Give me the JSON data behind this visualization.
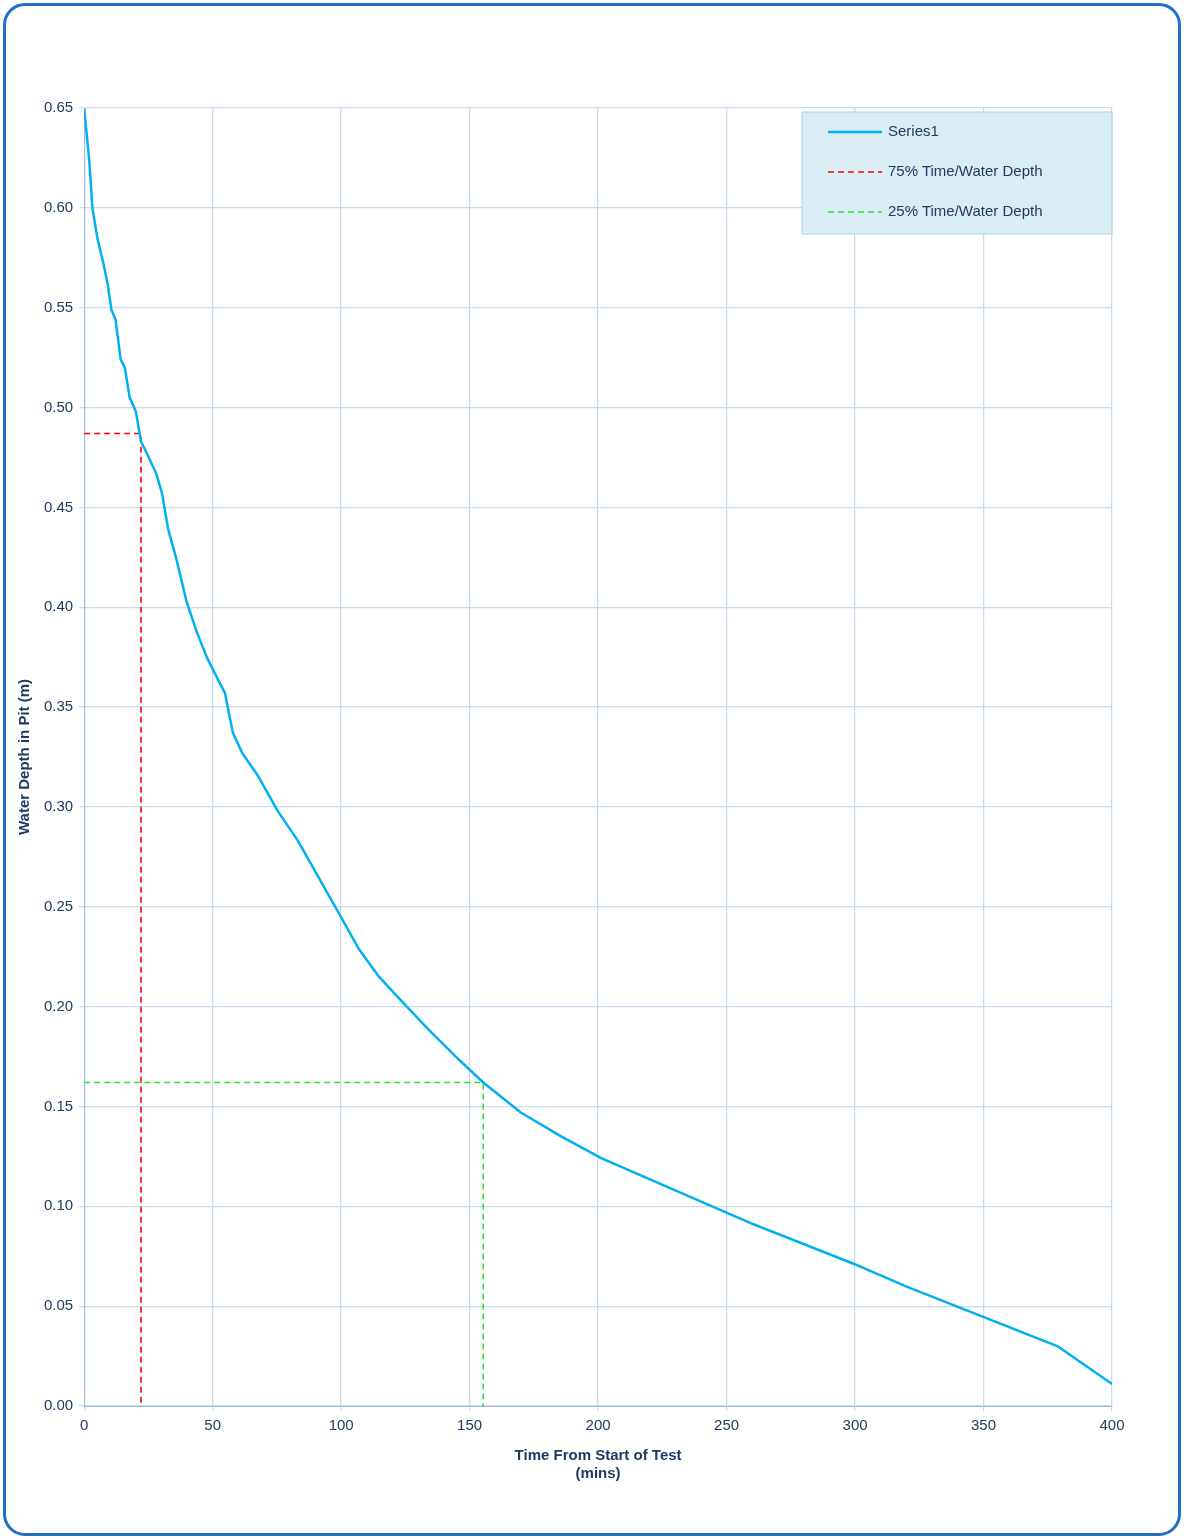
{
  "chart_data": {
    "type": "line",
    "xlabel": "Time From Start of Test\n(mins)",
    "ylabel": "Water Depth in Pit (m)",
    "xlim": [
      0,
      400
    ],
    "xticks": [
      0,
      50,
      100,
      150,
      200,
      250,
      300,
      350,
      400
    ],
    "ylim": [
      0,
      0.65
    ],
    "yticks": [
      {
        "value": 0,
        "label": "0.00"
      },
      {
        "value": 0.05,
        "label": "0.05"
      },
      {
        "value": 0.1,
        "label": "0.10"
      },
      {
        "value": 0.15,
        "label": "0.15"
      },
      {
        "value": 0.2,
        "label": "0.20"
      },
      {
        "value": 0.25,
        "label": "0.25"
      },
      {
        "value": 0.3,
        "label": "0.30"
      },
      {
        "value": 0.35,
        "label": "0.35"
      },
      {
        "value": 0.4,
        "label": "0.40"
      },
      {
        "value": 0.45,
        "label": "0.45"
      },
      {
        "value": 0.5,
        "label": "0.50"
      },
      {
        "value": 0.55,
        "label": "0.55"
      },
      {
        "value": 0.6,
        "label": "0.60"
      },
      {
        "value": 0.65,
        "label": "0.65"
      }
    ],
    "grid": true,
    "legend": "top right",
    "marker": "none",
    "series": [
      {
        "name": "Series1",
        "color": "#00b0f0",
        "line_style": "solid",
        "x": [
          0,
          2,
          3.2,
          5.1,
          7.5,
          9.1,
          10.6,
          12.2,
          14.2,
          15.8,
          17.7,
          20.1,
          22.1,
          24.8,
          28,
          30.3,
          32.7,
          35.9,
          39.8,
          43.7,
          47.7,
          51.6,
          54.8,
          56.3,
          57.9,
          61.5,
          67.4,
          75.3,
          83.2,
          91.1,
          99,
          106.8,
          114.7,
          122.6,
          134.4,
          146.2,
          155.3,
          169.9,
          185.6,
          201.4,
          221.1,
          240.8,
          260.5,
          280.2,
          299.9,
          319.6,
          339.3,
          359,
          378.7,
          400
        ],
        "values": [
          0.65,
          0.623,
          0.6,
          0.585,
          0.572,
          0.562,
          0.549,
          0.544,
          0.524,
          0.52,
          0.505,
          0.498,
          0.483,
          0.476,
          0.467,
          0.457,
          0.439,
          0.424,
          0.403,
          0.388,
          0.375,
          0.365,
          0.357,
          0.347,
          0.337,
          0.327,
          0.316,
          0.298,
          0.283,
          0.265,
          0.247,
          0.229,
          0.215,
          0.204,
          0.188,
          0.173,
          0.162,
          0.147,
          0.135,
          0.124,
          0.113,
          0.102,
          0.091,
          0.081,
          0.071,
          0.06,
          0.05,
          0.04,
          0.03,
          0.011
        ]
      },
      {
        "name": "75% Time/Water Depth",
        "color": "#ff0000",
        "line_style": "dashed",
        "x": [
          0,
          22.1,
          22.1
        ],
        "values": [
          0.487,
          0.487,
          0
        ]
      },
      {
        "name": "25% Time/Water Depth",
        "color": "#33dd33",
        "line_style": "dashed",
        "x": [
          0,
          155.3,
          155.3
        ],
        "values": [
          0.162,
          0.162,
          0
        ]
      }
    ]
  }
}
